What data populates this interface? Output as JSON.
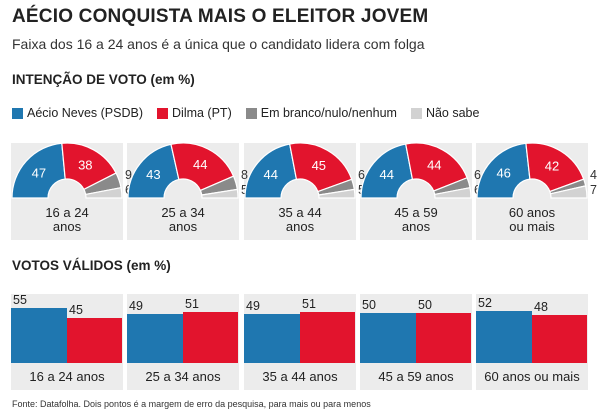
{
  "title": "AÉCIO CONQUISTA MAIS O ELEITOR JOVEM",
  "subtitle": "Faixa dos 16 a 24 anos é a única que o candidato lidera com folga",
  "section1": "INTENÇÃO DE VOTO (em %)",
  "section2": "VOTOS VÁLIDOS (em %)",
  "source": "Fonte: Datafolha. Dois pontos é a margem de erro da pesquisa, para mais ou para menos",
  "colors": {
    "aecio": "#1f77b0",
    "dilma": "#e2142d",
    "branco": "#8a8a8a",
    "naosabe": "#d2d2d2"
  },
  "legend": [
    "Aécio Neves (PSDB)",
    "Dilma (PT)",
    "Em branco/nulo/nenhum",
    "Não sabe"
  ],
  "chart_data": [
    {
      "type": "pie",
      "title": "INTENÇÃO DE VOTO (em %)",
      "categories": [
        [
          "16 a 24",
          "anos"
        ],
        [
          "25 a 34",
          "anos"
        ],
        [
          "35 a 44",
          "anos"
        ],
        [
          "45 a 59",
          "anos"
        ],
        [
          "60 anos",
          "ou mais"
        ]
      ],
      "series": [
        {
          "name": "Aécio Neves (PSDB)",
          "values": [
            47,
            43,
            44,
            44,
            46
          ]
        },
        {
          "name": "Dilma (PT)",
          "values": [
            38,
            44,
            45,
            44,
            42
          ]
        },
        {
          "name": "Em branco/nulo/nenhum",
          "values": [
            9,
            8,
            6,
            6,
            4
          ]
        },
        {
          "name": "Não sabe",
          "values": [
            6,
            5,
            5,
            6,
            7
          ]
        }
      ]
    },
    {
      "type": "bar",
      "title": "VOTOS VÁLIDOS (em %)",
      "categories": [
        "16 a 24 anos",
        "25 a 34 anos",
        "35 a 44 anos",
        "45 a 59 anos",
        "60 anos ou mais"
      ],
      "series": [
        {
          "name": "Aécio Neves (PSDB)",
          "values": [
            55,
            49,
            49,
            50,
            52
          ]
        },
        {
          "name": "Dilma (PT)",
          "values": [
            45,
            51,
            51,
            50,
            48
          ]
        }
      ]
    }
  ]
}
